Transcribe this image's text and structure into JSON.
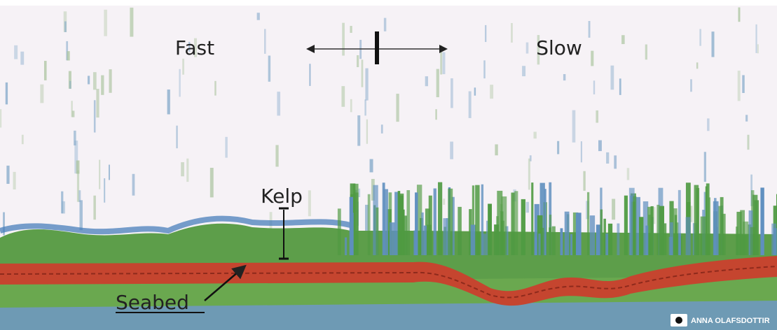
{
  "labels": {
    "fast": "Fast",
    "slow": "Slow",
    "kelp": "Kelp",
    "seabed": "Seabed"
  },
  "credit": "ANNA OLAFSDOTTIR"
}
